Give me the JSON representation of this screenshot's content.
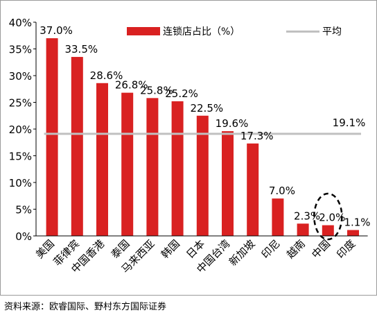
{
  "chart_data": {
    "type": "bar",
    "categories": [
      "美国",
      "菲律宾",
      "中国香港",
      "泰国",
      "马来西亚",
      "韩国",
      "日本",
      "中国台湾",
      "新加坡",
      "印尼",
      "越南",
      "中国",
      "印度"
    ],
    "series": [
      {
        "name": "连锁店占比（%）",
        "values": [
          37.0,
          33.5,
          28.6,
          26.8,
          25.8,
          25.2,
          22.5,
          19.6,
          17.3,
          7.0,
          2.3,
          2.0,
          1.1
        ],
        "data_labels": [
          "37.0%",
          "33.5%",
          "28.6%",
          "26.8%",
          "25.8%",
          "25.2%",
          "22.5%",
          "19.6%",
          "17.3%",
          "7.0%",
          "2.3%",
          "2.0%",
          "1.1%"
        ],
        "color": "#d92121"
      },
      {
        "name": "平均",
        "type": "line",
        "value": 19.1,
        "data_label": "19.1%",
        "color": "#c0c0c0"
      }
    ],
    "y_ticks": [
      "0%",
      "5%",
      "10%",
      "15%",
      "20%",
      "25%",
      "30%",
      "35%",
      "40%"
    ],
    "ylim": [
      0,
      40
    ],
    "grid": false,
    "legend": "top",
    "annotation": {
      "type": "dashed-ellipse",
      "target": "中国"
    }
  },
  "source_note": "资料来源：欧睿国际、野村东方国际证券"
}
